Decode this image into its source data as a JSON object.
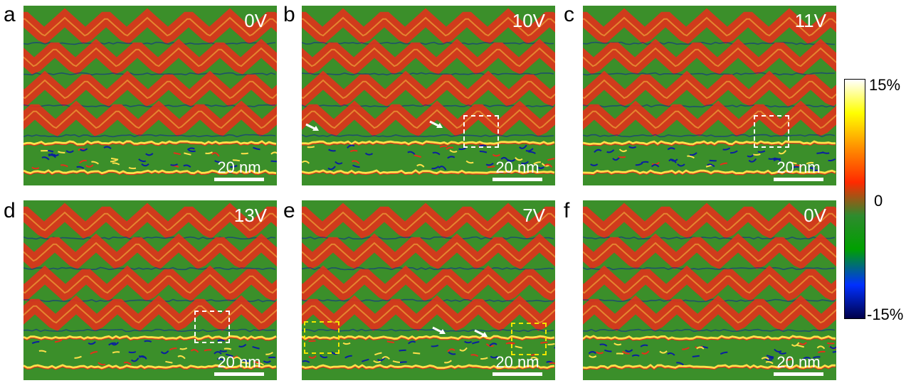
{
  "panels": [
    {
      "letter": "a",
      "voltage": "0V",
      "scalebar": "20 nm"
    },
    {
      "letter": "b",
      "voltage": "10V",
      "scalebar": "20 nm"
    },
    {
      "letter": "c",
      "voltage": "11V",
      "scalebar": "20 nm"
    },
    {
      "letter": "d",
      "voltage": "13V",
      "scalebar": "20 nm"
    },
    {
      "letter": "e",
      "voltage": "7V",
      "scalebar": "20 nm"
    },
    {
      "letter": "f",
      "voltage": "0V",
      "scalebar": "20 nm"
    }
  ],
  "colorbar": {
    "max_label": "15%",
    "mid_label": "0",
    "min_label": "-15%",
    "colors": [
      "#ffffff",
      "#ffff00",
      "#ff8c00",
      "#ff2a00",
      "#2e8b2e",
      "#00a000",
      "#0030ff",
      "#00004a"
    ]
  },
  "palette": {
    "background": "#3b8f2a",
    "stripe": "#e5301a",
    "bright": "#ffe04a",
    "dark": "#0a1fa0"
  }
}
